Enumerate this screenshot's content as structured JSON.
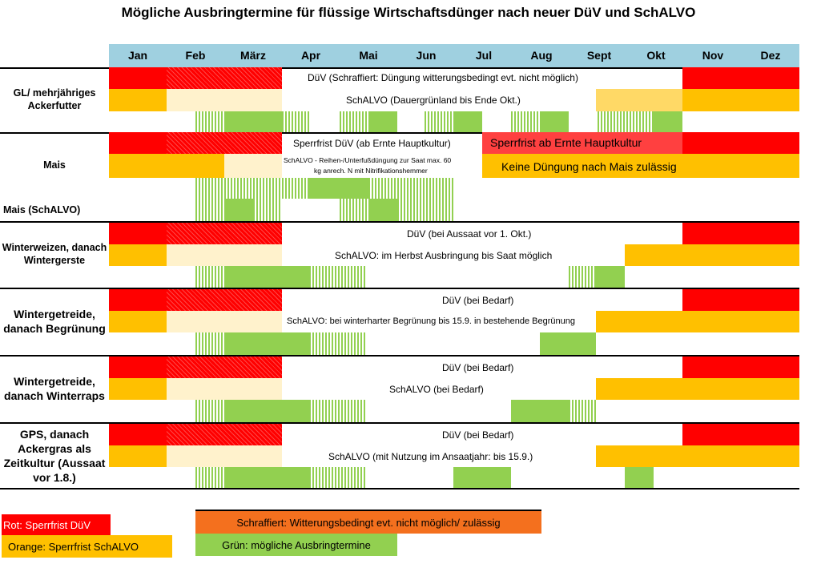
{
  "title": "Mögliche Ausbringtermine für flüssige Wirtschaftsdünger nach neuer DüV und SchALVO",
  "months": [
    "Jan",
    "Feb",
    "März",
    "Apr",
    "Mai",
    "Jun",
    "Jul",
    "Aug",
    "Sept",
    "Okt",
    "Nov",
    "Dez"
  ],
  "rows": {
    "gl": {
      "label": "GL/ mehrjähriges Ackerfutter",
      "duev": "DüV  (Schraffiert: Düngung witterungsbedingt evt. nicht möglich)",
      "schalvo": "SchALVO (Dauergrünland bis Ende Okt.)"
    },
    "mais": {
      "label": "Mais",
      "duev": "Sperrfrist DüV (ab Ernte Hauptkultur)",
      "duev_right": "Sperrfrist ab Ernte Hauptkultur",
      "schalvo_a": "SchALVO  - Reihen-/Unterfußdüngung zur Saat max. 60",
      "schalvo_b": "kg anrech. N mit Nitrifikationshemmer",
      "schalvo_right": "Keine Düngung nach Mais zulässig"
    },
    "mais_schalvo": {
      "label": "Mais (SchALVO)"
    },
    "ww": {
      "label": "Winterweizen, danach Wintergerste",
      "duev": "DüV (bei Aussaat vor 1. Okt.)",
      "schalvo": "SchALVO: im Herbst Ausbringung bis Saat möglich"
    },
    "wb": {
      "label": "Wintergetreide, danach Begrünung",
      "duev": "DüV (bei Bedarf)",
      "schalvo": "SchALVO: bei winterharter Begrünung bis 15.9. in bestehende Begrünung"
    },
    "wr": {
      "label": "Wintergetreide, danach Winterraps",
      "duev": "DüV (bei Bedarf)",
      "schalvo": "SchALVO (bei Bedarf)"
    },
    "gps": {
      "label": "GPS, danach Ackergras als Zeitkultur (Aussaat vor 1.8.)",
      "duev": "DüV (bei Bedarf)",
      "schalvo": "SchALVO (mit Nutzung im Ansaatjahr: bis 15.9.)"
    }
  },
  "legend": {
    "red": "Rot: Sperrfrist DüV",
    "orange": "Orange: Sperrfrist SchALVO",
    "hatched": "Schraffiert: Witterungsbedingt evt. nicht möglich/ zulässig",
    "green": "Grün: mögliche Ausbringtermine"
  },
  "colors": {
    "red": "#ff0000",
    "orange": "#ffc000",
    "cream": "#fff2cc",
    "green": "#92d050",
    "header": "#9fd0e0",
    "legend_orange": "#f4701e"
  }
}
